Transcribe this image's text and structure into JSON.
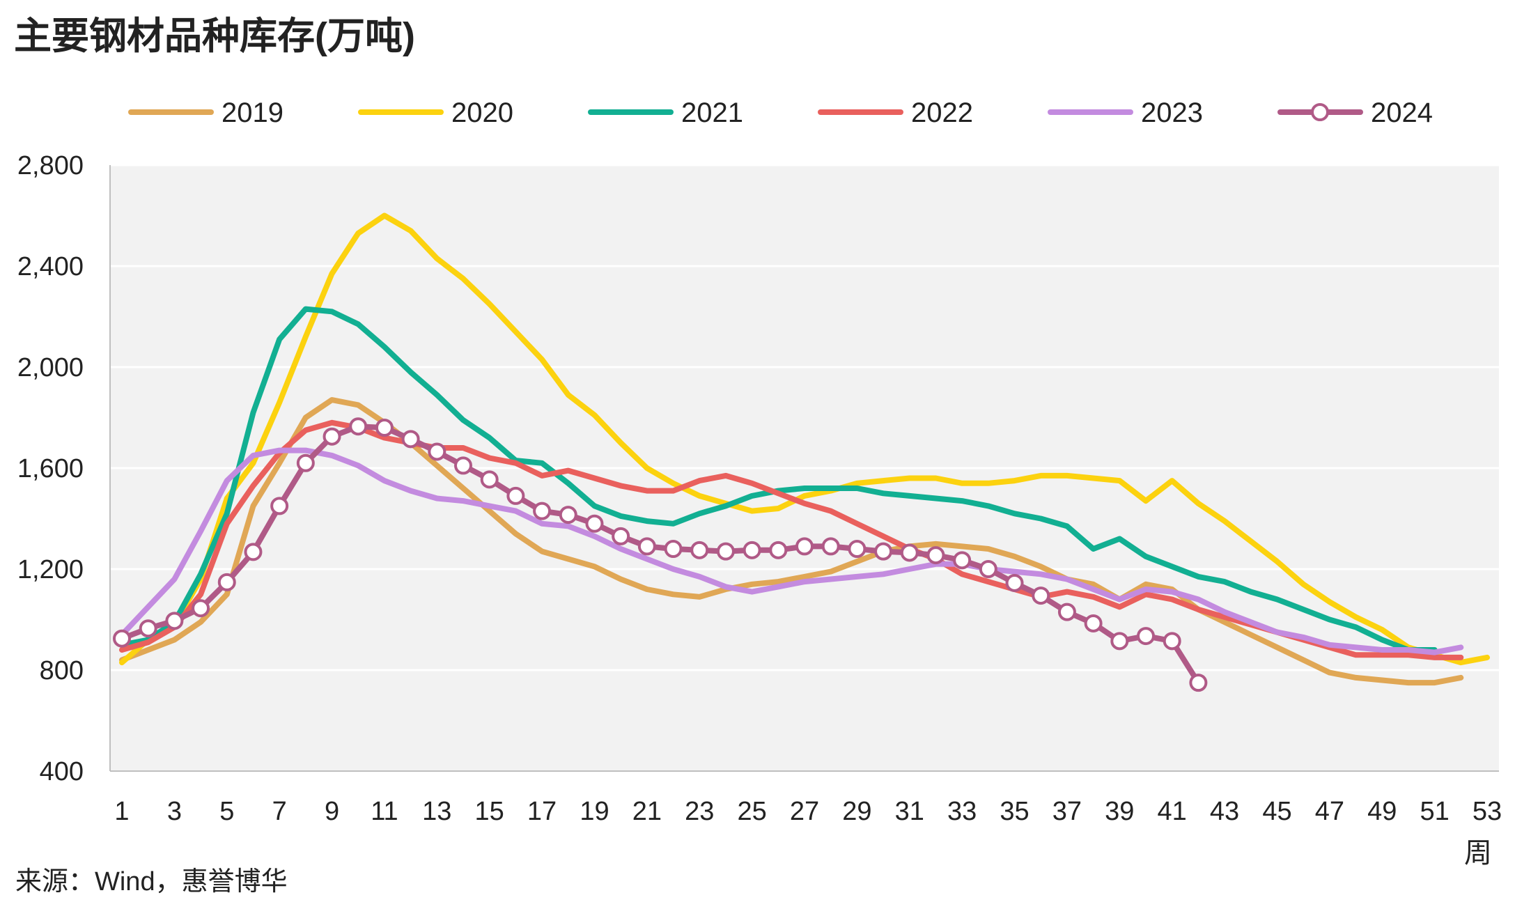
{
  "chart_data": {
    "type": "line",
    "title": "主要钢材品种库存(万吨)",
    "xlabel": "周",
    "ylabel": "",
    "source": "来源：Wind，惠誉博华",
    "xlim": [
      1,
      53
    ],
    "ylim": [
      400,
      2800
    ],
    "x_ticks": [
      "1",
      "3",
      "5",
      "7",
      "9",
      "11",
      "13",
      "15",
      "17",
      "19",
      "21",
      "23",
      "25",
      "27",
      "29",
      "31",
      "33",
      "35",
      "37",
      "39",
      "41",
      "43",
      "45",
      "47",
      "49",
      "51",
      "53"
    ],
    "y_ticks": [
      "400",
      "800",
      "1,200",
      "1,600",
      "2,000",
      "2,400",
      "2,800"
    ],
    "grid": true,
    "legend_position": "top",
    "series": [
      {
        "name": "2019",
        "color": "#E0A755",
        "values": [
          840,
          880,
          920,
          990,
          1100,
          1450,
          1620,
          1800,
          1870,
          1850,
          1780,
          1700,
          1610,
          1520,
          1430,
          1340,
          1270,
          1240,
          1210,
          1160,
          1120,
          1100,
          1090,
          1120,
          1140,
          1150,
          1170,
          1190,
          1230,
          1270,
          1290,
          1300,
          1290,
          1280,
          1250,
          1210,
          1160,
          1140,
          1080,
          1140,
          1120,
          1040,
          990,
          940,
          890,
          840,
          790,
          770,
          760,
          750,
          750,
          770
        ]
      },
      {
        "name": "2020",
        "color": "#FCD20F",
        "values": [
          830,
          920,
          980,
          1160,
          1480,
          1620,
          1860,
          2120,
          2370,
          2530,
          2600,
          2540,
          2430,
          2350,
          2250,
          2140,
          2030,
          1890,
          1810,
          1700,
          1600,
          1540,
          1490,
          1460,
          1430,
          1440,
          1490,
          1510,
          1540,
          1550,
          1560,
          1560,
          1540,
          1540,
          1550,
          1570,
          1570,
          1560,
          1550,
          1470,
          1550,
          1460,
          1390,
          1310,
          1230,
          1140,
          1070,
          1010,
          960,
          890,
          860,
          830,
          850
        ]
      },
      {
        "name": "2021",
        "color": "#12AF92",
        "values": [
          900,
          920,
          990,
          1180,
          1420,
          1820,
          2110,
          2230,
          2220,
          2170,
          2080,
          1980,
          1890,
          1790,
          1720,
          1630,
          1620,
          1540,
          1450,
          1410,
          1390,
          1380,
          1420,
          1450,
          1490,
          1510,
          1520,
          1520,
          1520,
          1500,
          1490,
          1480,
          1470,
          1450,
          1420,
          1400,
          1370,
          1280,
          1320,
          1250,
          1210,
          1170,
          1150,
          1110,
          1080,
          1040,
          1000,
          970,
          920,
          880,
          880
        ]
      },
      {
        "name": "2022",
        "color": "#E9605D",
        "values": [
          880,
          910,
          970,
          1100,
          1380,
          1530,
          1660,
          1750,
          1780,
          1760,
          1720,
          1700,
          1680,
          1680,
          1640,
          1620,
          1570,
          1590,
          1560,
          1530,
          1510,
          1510,
          1550,
          1570,
          1540,
          1500,
          1460,
          1430,
          1380,
          1330,
          1280,
          1240,
          1180,
          1150,
          1120,
          1090,
          1110,
          1090,
          1050,
          1100,
          1080,
          1040,
          1010,
          980,
          950,
          920,
          890,
          860,
          860,
          860,
          850,
          850
        ]
      },
      {
        "name": "2023",
        "color": "#C38BDF",
        "values": [
          940,
          1050,
          1160,
          1350,
          1550,
          1650,
          1670,
          1670,
          1650,
          1610,
          1550,
          1510,
          1480,
          1470,
          1450,
          1430,
          1380,
          1370,
          1330,
          1280,
          1240,
          1200,
          1170,
          1130,
          1110,
          1130,
          1150,
          1160,
          1170,
          1180,
          1200,
          1220,
          1220,
          1200,
          1190,
          1180,
          1160,
          1120,
          1080,
          1120,
          1110,
          1080,
          1030,
          990,
          950,
          930,
          900,
          890,
          880,
          880,
          870,
          890
        ]
      },
      {
        "name": "2024",
        "color": "#B05A87",
        "marker": "circle",
        "values": [
          925,
          965,
          995,
          1045,
          1148,
          1268,
          1450,
          1620,
          1725,
          1765,
          1760,
          1715,
          1665,
          1610,
          1555,
          1490,
          1430,
          1415,
          1380,
          1330,
          1290,
          1280,
          1275,
          1270,
          1275,
          1275,
          1290,
          1290,
          1280,
          1270,
          1265,
          1255,
          1235,
          1200,
          1145,
          1095,
          1030,
          985,
          915,
          935,
          915,
          750
        ]
      }
    ]
  }
}
